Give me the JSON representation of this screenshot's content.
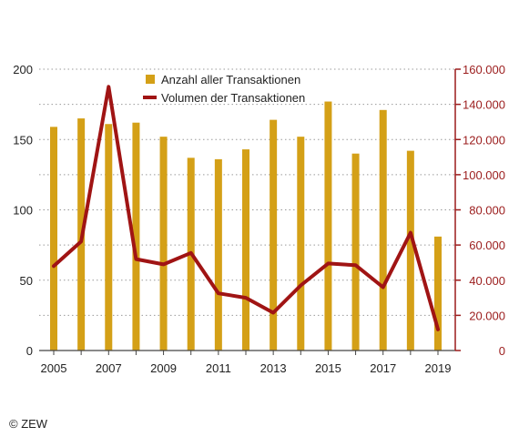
{
  "chart_data": {
    "type": "bar+line",
    "x": [
      2005,
      2006,
      2007,
      2008,
      2009,
      2010,
      2011,
      2012,
      2013,
      2014,
      2015,
      2016,
      2017,
      2018,
      2019
    ],
    "x_tick_labels": [
      "2005",
      "2007",
      "2009",
      "2011",
      "2013",
      "2015",
      "2017",
      "2019"
    ],
    "series": [
      {
        "name": "Anzahl aller Transaktionen",
        "type": "bar",
        "axis": "left",
        "color": "#d4a017",
        "values": [
          159,
          165,
          161,
          162,
          152,
          137,
          136,
          143,
          164,
          152,
          177,
          140,
          171,
          142,
          81
        ]
      },
      {
        "name": "Volumen der Transaktionen",
        "type": "line",
        "axis": "right",
        "color": "#a01414",
        "values": [
          48000,
          62000,
          150000,
          52000,
          49000,
          55500,
          32500,
          30000,
          21500,
          37000,
          49500,
          48500,
          36000,
          67000,
          12000
        ]
      }
    ],
    "y_left": {
      "ylim": [
        0,
        200
      ],
      "ticks": [
        "0",
        "50",
        "100",
        "150",
        "200"
      ]
    },
    "y_right": {
      "ylim": [
        0,
        160000
      ],
      "ticks": [
        "0",
        "20.000",
        "40.000",
        "60.000",
        "80.000",
        "100.000",
        "120.000",
        "140.000",
        "160.000"
      ]
    },
    "grid": "horizontal-dotted",
    "legend": "top-center"
  },
  "copyright": "© ZEW"
}
